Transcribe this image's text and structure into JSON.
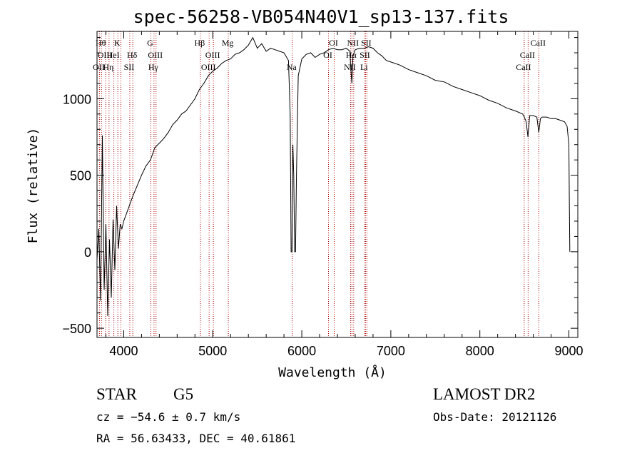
{
  "chart_data": {
    "type": "line",
    "title": "spec-56258-VB054N40V1_sp13-137.fits",
    "xlabel": "Wavelength (Å)",
    "ylabel": "Flux (relative)",
    "xlim": [
      3700,
      9100
    ],
    "ylim": [
      -560,
      1440
    ],
    "x_ticks": [
      4000,
      5000,
      6000,
      7000,
      8000,
      9000
    ],
    "y_ticks": [
      -500,
      0,
      500,
      1000
    ],
    "x_minor_step": 200,
    "y_minor_step": 100,
    "series": [
      {
        "name": "flux",
        "x": [
          3700,
          3720,
          3740,
          3760,
          3780,
          3800,
          3820,
          3840,
          3860,
          3880,
          3900,
          3920,
          3940,
          3960,
          3980,
          4000,
          4050,
          4100,
          4150,
          4200,
          4250,
          4300,
          4350,
          4400,
          4450,
          4500,
          4550,
          4600,
          4650,
          4700,
          4750,
          4800,
          4850,
          4900,
          4950,
          5000,
          5050,
          5100,
          5150,
          5200,
          5250,
          5300,
          5350,
          5400,
          5450,
          5500,
          5550,
          5600,
          5650,
          5700,
          5750,
          5800,
          5850,
          5870,
          5880,
          5890,
          5895,
          5900,
          5910,
          5920,
          5930,
          5940,
          5960,
          6000,
          6050,
          6100,
          6150,
          6200,
          6250,
          6300,
          6350,
          6400,
          6450,
          6500,
          6540,
          6550,
          6563,
          6575,
          6600,
          6650,
          6700,
          6750,
          6800,
          6850,
          6900,
          6950,
          7000,
          7100,
          7200,
          7300,
          7400,
          7500,
          7600,
          7700,
          7800,
          7900,
          8000,
          8100,
          8200,
          8300,
          8400,
          8480,
          8500,
          8520,
          8540,
          8560,
          8600,
          8640,
          8662,
          8680,
          8700,
          8750,
          8800,
          8850,
          8900,
          8950,
          8980,
          9000,
          9005,
          9010
        ],
        "values": [
          -50,
          150,
          -320,
          760,
          -250,
          180,
          -420,
          80,
          -300,
          210,
          -120,
          300,
          20,
          180,
          150,
          200,
          280,
          360,
          430,
          500,
          560,
          600,
          680,
          710,
          740,
          780,
          830,
          860,
          900,
          920,
          960,
          1000,
          1060,
          1100,
          1150,
          1180,
          1200,
          1230,
          1250,
          1260,
          1290,
          1300,
          1320,
          1350,
          1400,
          1330,
          1360,
          1310,
          1330,
          1320,
          1310,
          1300,
          1250,
          900,
          0,
          0,
          500,
          700,
          500,
          0,
          0,
          500,
          1150,
          1260,
          1290,
          1300,
          1270,
          1290,
          1300,
          1320,
          1330,
          1320,
          1320,
          1330,
          1310,
          1200,
          1100,
          1280,
          1320,
          1330,
          1330,
          1340,
          1330,
          1300,
          1280,
          1250,
          1240,
          1220,
          1190,
          1170,
          1150,
          1120,
          1110,
          1080,
          1060,
          1040,
          1020,
          990,
          970,
          940,
          920,
          900,
          880,
          850,
          750,
          890,
          890,
          880,
          780,
          870,
          880,
          880,
          870,
          870,
          860,
          850,
          820,
          700,
          350,
          0
        ],
        "color": "#000000"
      }
    ],
    "line_markers": [
      {
        "wavelength": 3727,
        "label": "OII",
        "row": 2
      },
      {
        "wavelength": 3750,
        "label": "Hθ",
        "row": 0
      },
      {
        "wavelength": 3797,
        "label": "OIII",
        "row": 1
      },
      {
        "wavelength": 3835,
        "label": "Hη",
        "row": 2
      },
      {
        "wavelength": 3889,
        "label": "HeI",
        "row": 1
      },
      {
        "wavelength": 3934,
        "label": "K",
        "row": 0
      },
      {
        "wavelength": 3968,
        "label": "",
        "row": -1
      },
      {
        "wavelength": 4068,
        "label": "SII",
        "row": 2
      },
      {
        "wavelength": 4102,
        "label": "Hδ",
        "row": 1
      },
      {
        "wavelength": 4305,
        "label": "G",
        "row": 0
      },
      {
        "wavelength": 4340,
        "label": "Hγ",
        "row": 2
      },
      {
        "wavelength": 4363,
        "label": "OIII",
        "row": 1
      },
      {
        "wavelength": 4861,
        "label": "Hβ",
        "row": 0
      },
      {
        "wavelength": 4959,
        "label": "OIII",
        "row": 2
      },
      {
        "wavelength": 5007,
        "label": "OIII",
        "row": 1
      },
      {
        "wavelength": 5175,
        "label": "Mg",
        "row": 0
      },
      {
        "wavelength": 5893,
        "label": "Na",
        "row": 2
      },
      {
        "wavelength": 6300,
        "label": "OI",
        "row": 1
      },
      {
        "wavelength": 6364,
        "label": "OI",
        "row": 0
      },
      {
        "wavelength": 6548,
        "label": "NII",
        "row": 2
      },
      {
        "wavelength": 6563,
        "label": "Hα",
        "row": 1
      },
      {
        "wavelength": 6583,
        "label": "NII",
        "row": 0
      },
      {
        "wavelength": 6707,
        "label": "Li",
        "row": 2
      },
      {
        "wavelength": 6716,
        "label": "SII",
        "row": 1
      },
      {
        "wavelength": 6731,
        "label": "SII",
        "row": 0
      },
      {
        "wavelength": 8498,
        "label": "CaII",
        "row": 2
      },
      {
        "wavelength": 8542,
        "label": "CaII",
        "row": 1
      },
      {
        "wavelength": 8662,
        "label": "CaII",
        "row": 0
      }
    ],
    "marker_color": "#aa0000"
  },
  "info": {
    "class": "STAR",
    "subclass": "G5",
    "survey": "LAMOST DR2",
    "cz": "cz = −54.6 ± 0.7 km/s",
    "obs_date": "Obs-Date: 20121126",
    "radec": "RA =  56.63433, DEC =  40.61861"
  }
}
